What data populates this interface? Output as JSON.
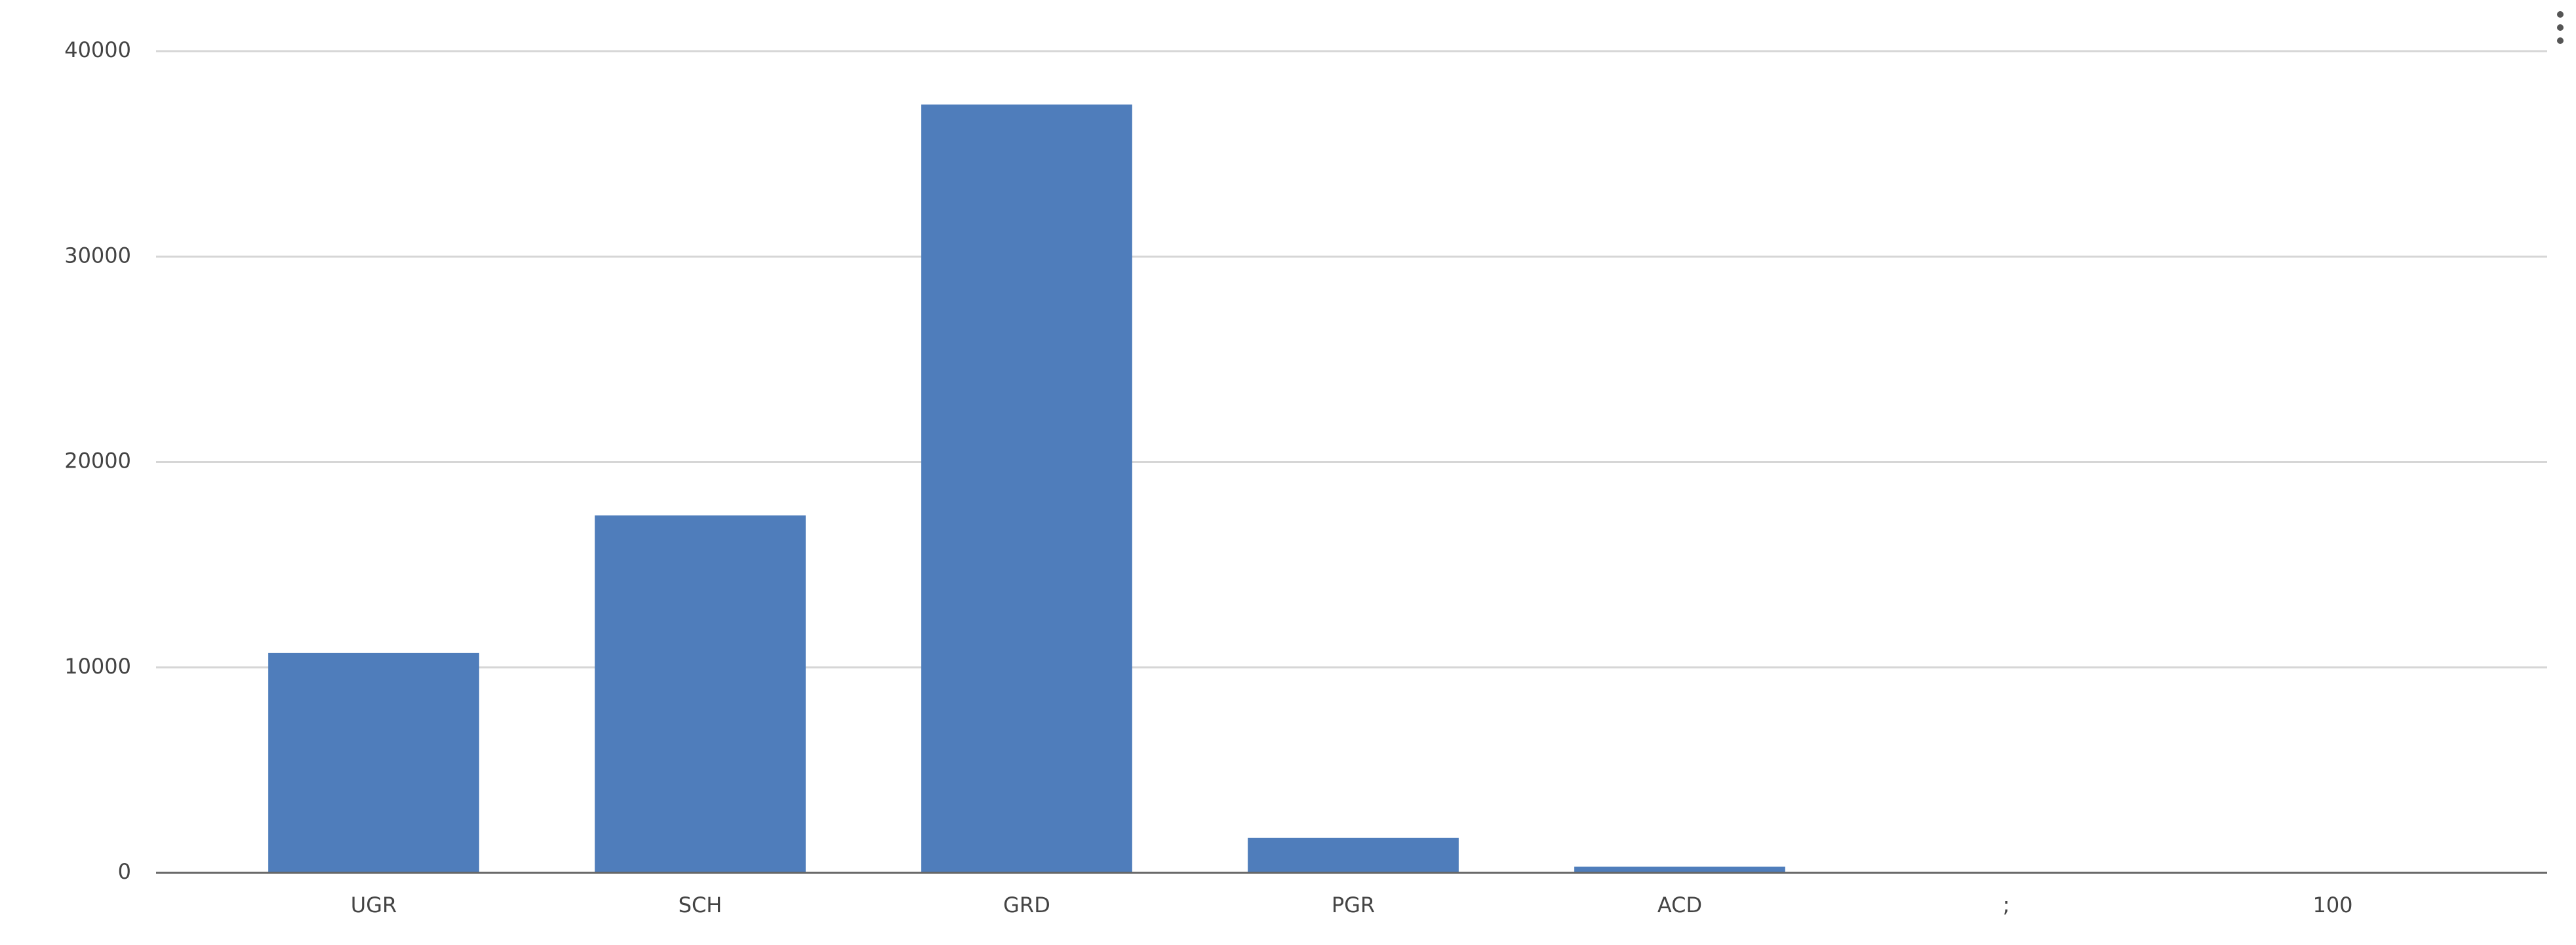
{
  "chart_data": {
    "type": "bar",
    "categories": [
      "UGR",
      "SCH",
      "GRD",
      "PGR",
      "ACD",
      ";",
      "100"
    ],
    "values": [
      10700,
      17400,
      37400,
      1700,
      300,
      0,
      0
    ],
    "color": "#4f7dbb",
    "ylim": [
      0,
      40000
    ],
    "yticks": [
      0,
      10000,
      20000,
      30000,
      40000
    ],
    "grid": true
  }
}
